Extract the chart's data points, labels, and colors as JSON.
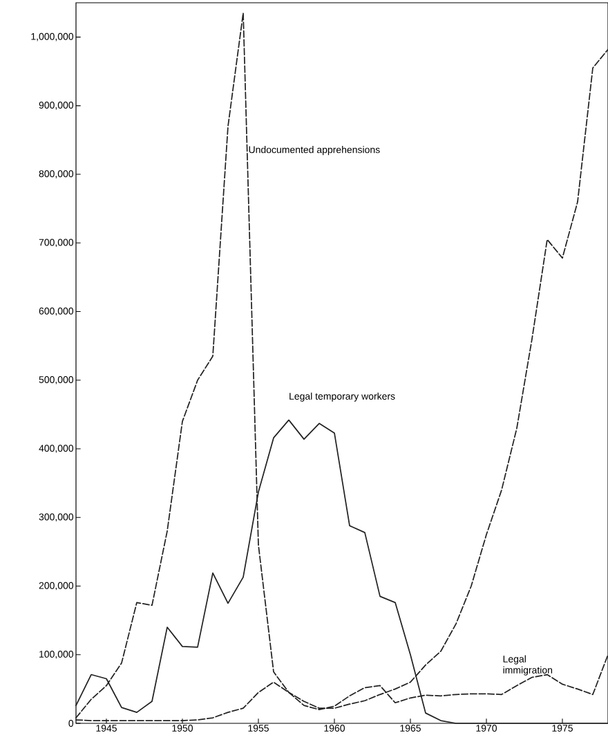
{
  "chart_data": {
    "type": "line",
    "x": [
      1943,
      1944,
      1945,
      1946,
      1947,
      1948,
      1949,
      1950,
      1951,
      1952,
      1953,
      1954,
      1955,
      1956,
      1957,
      1958,
      1959,
      1960,
      1961,
      1962,
      1963,
      1964,
      1965,
      1966,
      1967,
      1968,
      1969,
      1970,
      1971,
      1972,
      1973,
      1974,
      1975,
      1976,
      1977,
      1978
    ],
    "series": [
      {
        "name": "Undocumented apprehensions",
        "color": "#222222",
        "line_style": "dashed",
        "values": [
          8000,
          35000,
          55000,
          88000,
          176000,
          172000,
          280000,
          440000,
          500000,
          535000,
          870000,
          1035000,
          260000,
          75000,
          45000,
          32000,
          22000,
          22000,
          28000,
          33000,
          42000,
          50000,
          60000,
          85000,
          105000,
          145000,
          200000,
          275000,
          340000,
          430000,
          560000,
          705000,
          678000,
          760000,
          955000,
          982000
        ]
      },
      {
        "name": "Legal temporary workers",
        "color": "#222222",
        "line_style": "solid",
        "values": [
          26000,
          71000,
          65000,
          23000,
          16000,
          32000,
          140000,
          112000,
          111000,
          219000,
          175000,
          213000,
          337000,
          416000,
          442000,
          414000,
          437000,
          423000,
          288000,
          278000,
          185000,
          176000,
          100000,
          15000,
          4000,
          0,
          0,
          0,
          0,
          0,
          0,
          0,
          0,
          0,
          0,
          0
        ]
      },
      {
        "name": "Legal immigration",
        "color": "#222222",
        "line_style": "dashed",
        "values": [
          5000,
          4000,
          4000,
          4000,
          4000,
          4000,
          4000,
          4000,
          5000,
          8000,
          16000,
          22000,
          45000,
          60000,
          45000,
          26000,
          20000,
          25000,
          40000,
          52000,
          55000,
          30000,
          37000,
          41000,
          40000,
          42000,
          43000,
          43000,
          42000,
          55000,
          67000,
          71000,
          57000,
          50000,
          42000,
          100000
        ]
      }
    ],
    "xlim": [
      1943,
      1978
    ],
    "ylim": [
      0,
      1050000
    ],
    "xticks": [
      1945,
      1950,
      1955,
      1960,
      1965,
      1970,
      1975
    ],
    "yticks": [
      {
        "value": 0,
        "label": "0"
      },
      {
        "value": 100000,
        "label": "100,000"
      },
      {
        "value": 200000,
        "label": "200,000"
      },
      {
        "value": 300000,
        "label": "300,000"
      },
      {
        "value": 400000,
        "label": "400,000"
      },
      {
        "value": 500000,
        "label": "500,000"
      },
      {
        "value": 600000,
        "label": "600,000"
      },
      {
        "value": 700000,
        "label": "700,000"
      },
      {
        "value": 800000,
        "label": "800,000"
      },
      {
        "value": 900000,
        "label": "900,000"
      },
      {
        "value": 1000000,
        "label": "1,000,000"
      }
    ],
    "grid": false,
    "legend": false,
    "marker": "none"
  }
}
